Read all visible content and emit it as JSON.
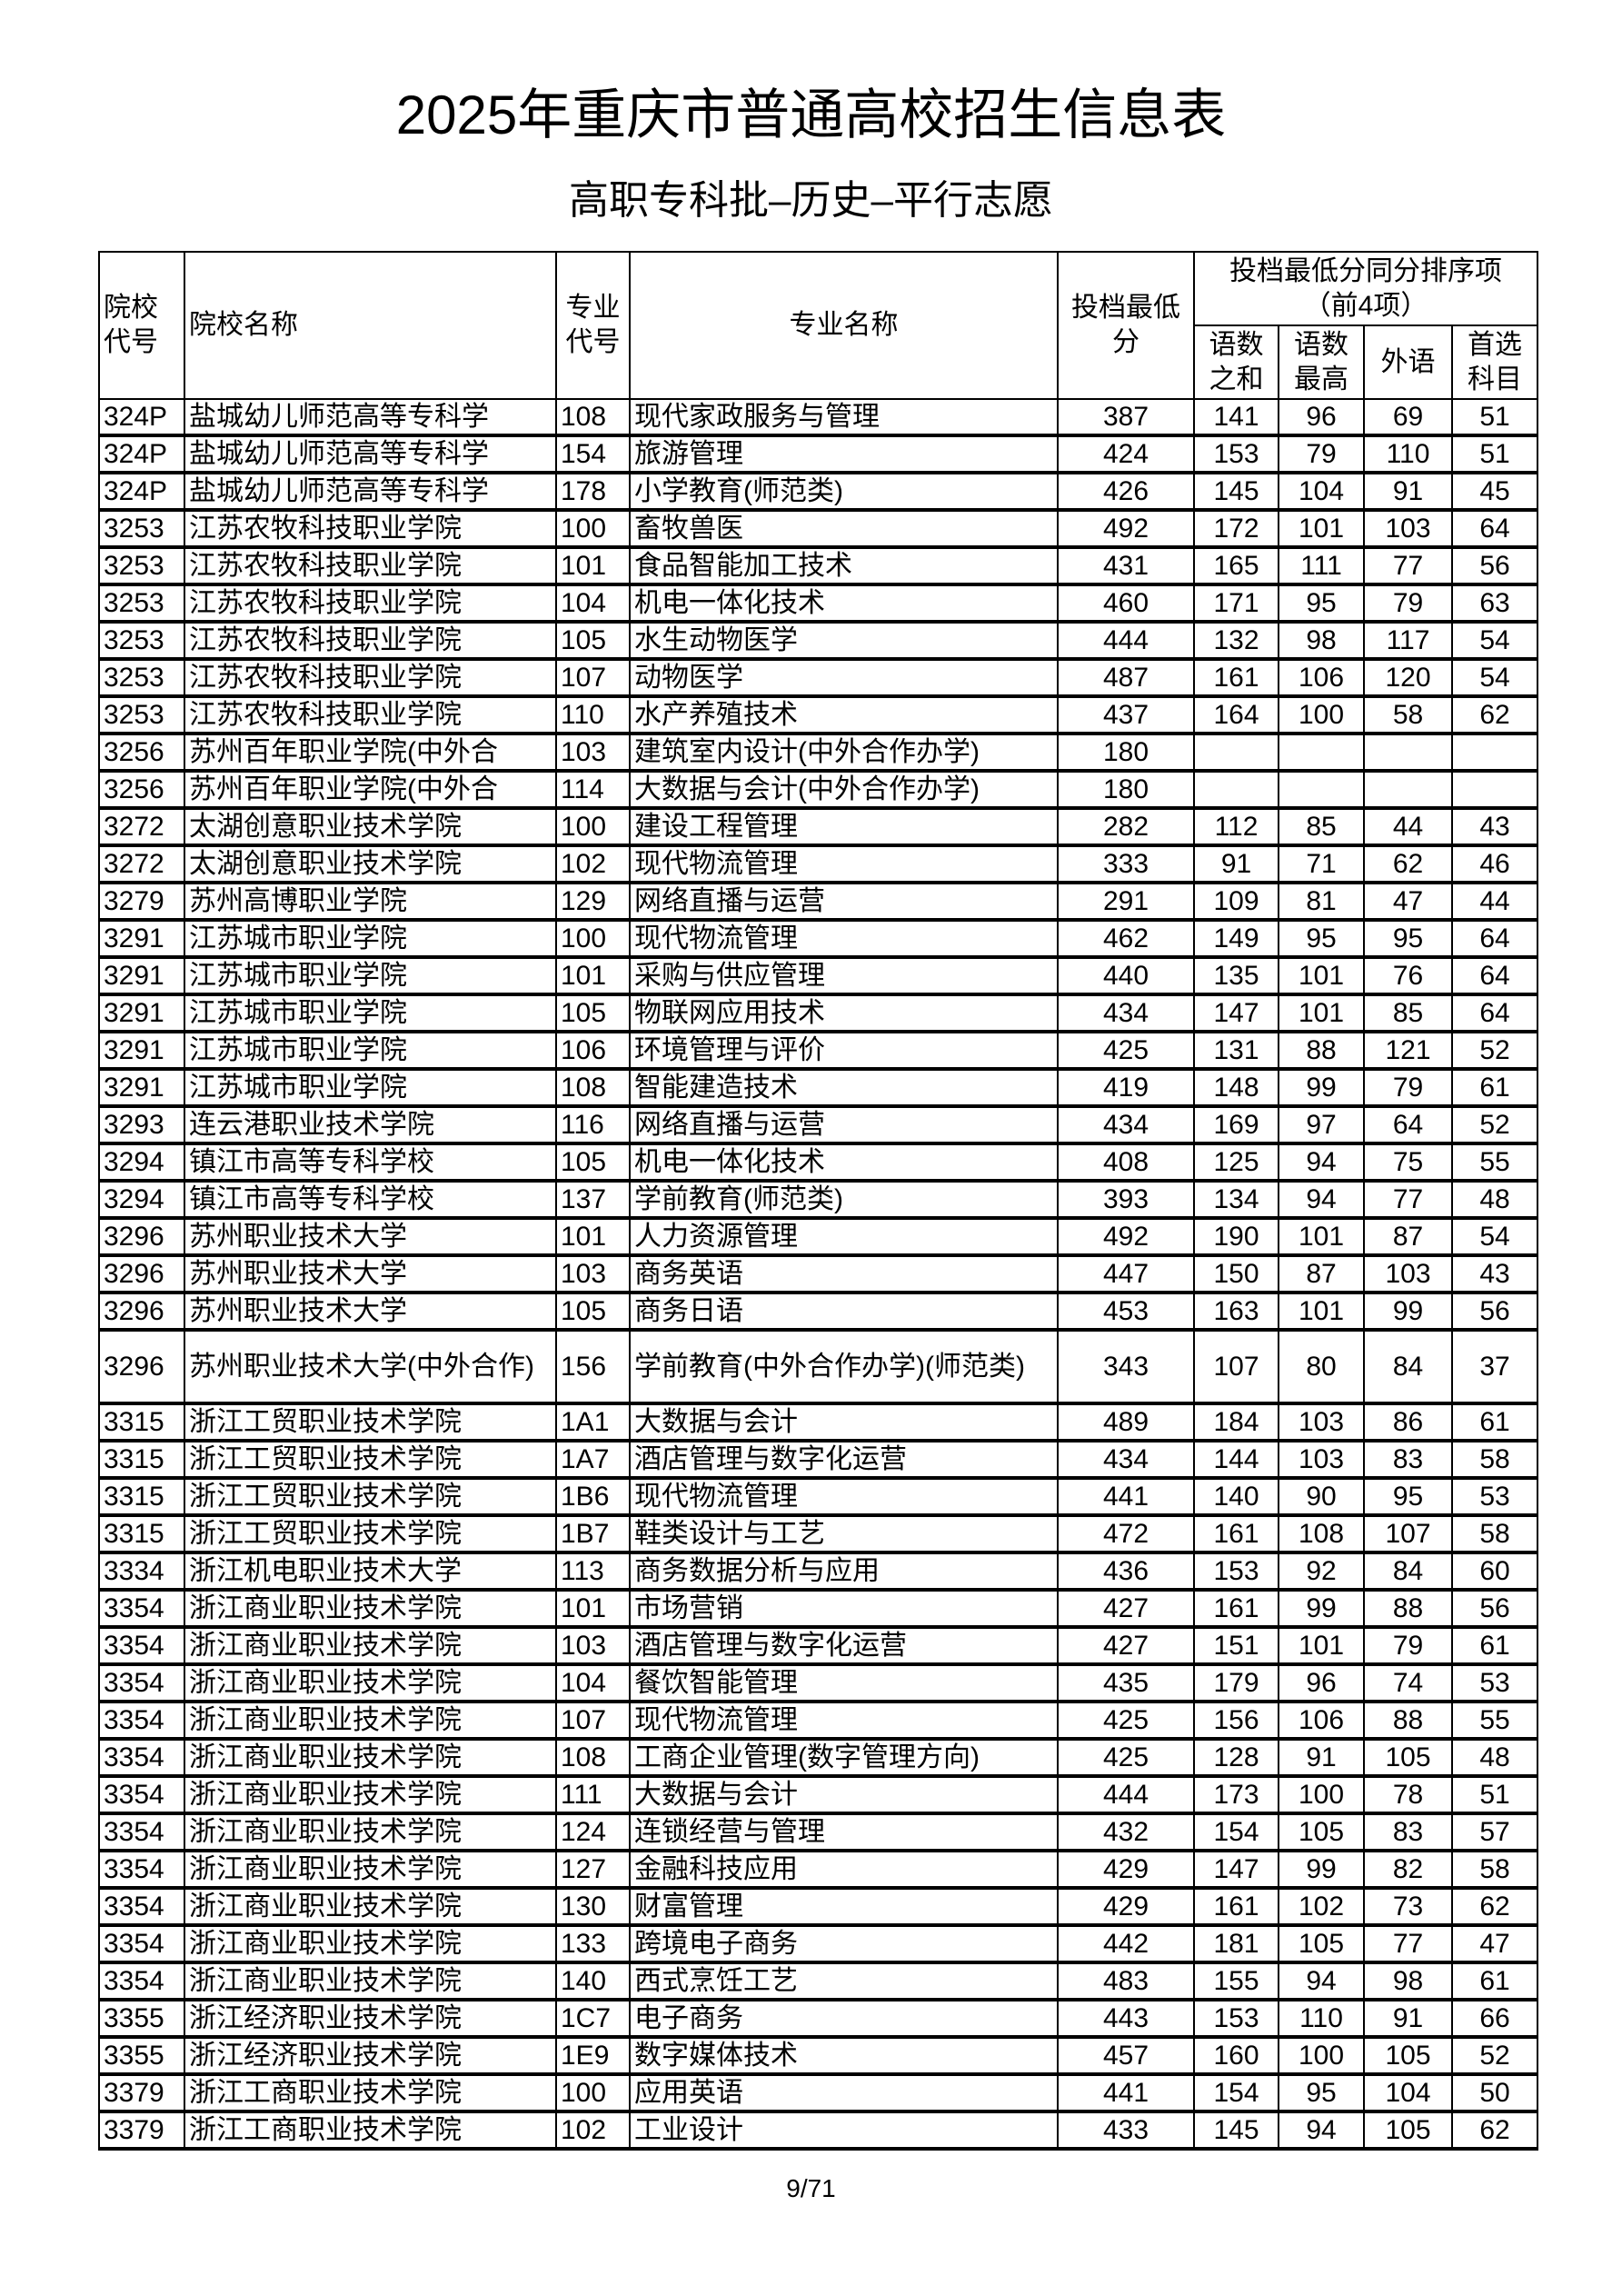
{
  "title": "2025年重庆市普通高校招生信息表",
  "subtitle": "高职专科批–历史–平行志愿",
  "table": {
    "headers": {
      "school_code": "院校代号",
      "school_name": "院校名称",
      "major_code": "专业代号",
      "major_name": "专业名称",
      "min_score": "投档最低分",
      "tiebreak_group": "投档最低分同分排序项",
      "tiebreak_group_note": "（前4项）",
      "yushu_sum": "语数之和",
      "yushu_max": "语数最高",
      "foreign": "外语",
      "first_subject": "首选科目"
    },
    "rows": [
      [
        "324P",
        "盐城幼儿师范高等专科学",
        "108",
        "现代家政服务与管理",
        "387",
        "141",
        "96",
        "69",
        "51"
      ],
      [
        "324P",
        "盐城幼儿师范高等专科学",
        "154",
        "旅游管理",
        "424",
        "153",
        "79",
        "110",
        "51"
      ],
      [
        "324P",
        "盐城幼儿师范高等专科学",
        "178",
        "小学教育(师范类)",
        "426",
        "145",
        "104",
        "91",
        "45"
      ],
      [
        "3253",
        "江苏农牧科技职业学院",
        "100",
        "畜牧兽医",
        "492",
        "172",
        "101",
        "103",
        "64"
      ],
      [
        "3253",
        "江苏农牧科技职业学院",
        "101",
        "食品智能加工技术",
        "431",
        "165",
        "111",
        "77",
        "56"
      ],
      [
        "3253",
        "江苏农牧科技职业学院",
        "104",
        "机电一体化技术",
        "460",
        "171",
        "95",
        "79",
        "63"
      ],
      [
        "3253",
        "江苏农牧科技职业学院",
        "105",
        "水生动物医学",
        "444",
        "132",
        "98",
        "117",
        "54"
      ],
      [
        "3253",
        "江苏农牧科技职业学院",
        "107",
        "动物医学",
        "487",
        "161",
        "106",
        "120",
        "54"
      ],
      [
        "3253",
        "江苏农牧科技职业学院",
        "110",
        "水产养殖技术",
        "437",
        "164",
        "100",
        "58",
        "62"
      ],
      [
        "3256",
        "苏州百年职业学院(中外合",
        "103",
        "建筑室内设计(中外合作办学)",
        "180",
        "",
        "",
        "",
        ""
      ],
      [
        "3256",
        "苏州百年职业学院(中外合",
        "114",
        "大数据与会计(中外合作办学)",
        "180",
        "",
        "",
        "",
        ""
      ],
      [
        "3272",
        "太湖创意职业技术学院",
        "100",
        "建设工程管理",
        "282",
        "112",
        "85",
        "44",
        "43"
      ],
      [
        "3272",
        "太湖创意职业技术学院",
        "102",
        "现代物流管理",
        "333",
        "91",
        "71",
        "62",
        "46"
      ],
      [
        "3279",
        "苏州高博职业学院",
        "129",
        "网络直播与运营",
        "291",
        "109",
        "81",
        "47",
        "44"
      ],
      [
        "3291",
        "江苏城市职业学院",
        "100",
        "现代物流管理",
        "462",
        "149",
        "95",
        "95",
        "64"
      ],
      [
        "3291",
        "江苏城市职业学院",
        "101",
        "采购与供应管理",
        "440",
        "135",
        "101",
        "76",
        "64"
      ],
      [
        "3291",
        "江苏城市职业学院",
        "105",
        "物联网应用技术",
        "434",
        "147",
        "101",
        "85",
        "64"
      ],
      [
        "3291",
        "江苏城市职业学院",
        "106",
        "环境管理与评价",
        "425",
        "131",
        "88",
        "121",
        "52"
      ],
      [
        "3291",
        "江苏城市职业学院",
        "108",
        "智能建造技术",
        "419",
        "148",
        "99",
        "79",
        "61"
      ],
      [
        "3293",
        "连云港职业技术学院",
        "116",
        "网络直播与运营",
        "434",
        "169",
        "97",
        "64",
        "52"
      ],
      [
        "3294",
        "镇江市高等专科学校",
        "105",
        "机电一体化技术",
        "408",
        "125",
        "94",
        "75",
        "55"
      ],
      [
        "3294",
        "镇江市高等专科学校",
        "137",
        "学前教育(师范类)",
        "393",
        "134",
        "94",
        "77",
        "48"
      ],
      [
        "3296",
        "苏州职业技术大学",
        "101",
        "人力资源管理",
        "492",
        "190",
        "101",
        "87",
        "54"
      ],
      [
        "3296",
        "苏州职业技术大学",
        "103",
        "商务英语",
        "447",
        "150",
        "87",
        "103",
        "43"
      ],
      [
        "3296",
        "苏州职业技术大学",
        "105",
        "商务日语",
        "453",
        "163",
        "101",
        "99",
        "56"
      ],
      [
        "3296",
        "苏州职业技术大学(中外合作)",
        "156",
        "学前教育(中外合作办学)(师范类)",
        "343",
        "107",
        "80",
        "84",
        "37"
      ],
      [
        "3315",
        "浙江工贸职业技术学院",
        "1A1",
        "大数据与会计",
        "489",
        "184",
        "103",
        "86",
        "61"
      ],
      [
        "3315",
        "浙江工贸职业技术学院",
        "1A7",
        "酒店管理与数字化运营",
        "434",
        "144",
        "103",
        "83",
        "58"
      ],
      [
        "3315",
        "浙江工贸职业技术学院",
        "1B6",
        "现代物流管理",
        "441",
        "140",
        "90",
        "95",
        "53"
      ],
      [
        "3315",
        "浙江工贸职业技术学院",
        "1B7",
        "鞋类设计与工艺",
        "472",
        "161",
        "108",
        "107",
        "58"
      ],
      [
        "3334",
        "浙江机电职业技术大学",
        "113",
        "商务数据分析与应用",
        "436",
        "153",
        "92",
        "84",
        "60"
      ],
      [
        "3354",
        "浙江商业职业技术学院",
        "101",
        "市场营销",
        "427",
        "161",
        "99",
        "88",
        "56"
      ],
      [
        "3354",
        "浙江商业职业技术学院",
        "103",
        "酒店管理与数字化运营",
        "427",
        "151",
        "101",
        "79",
        "61"
      ],
      [
        "3354",
        "浙江商业职业技术学院",
        "104",
        "餐饮智能管理",
        "435",
        "179",
        "96",
        "74",
        "53"
      ],
      [
        "3354",
        "浙江商业职业技术学院",
        "107",
        "现代物流管理",
        "425",
        "156",
        "106",
        "88",
        "55"
      ],
      [
        "3354",
        "浙江商业职业技术学院",
        "108",
        "工商企业管理(数字管理方向)",
        "425",
        "128",
        "91",
        "105",
        "48"
      ],
      [
        "3354",
        "浙江商业职业技术学院",
        "111",
        "大数据与会计",
        "444",
        "173",
        "100",
        "78",
        "51"
      ],
      [
        "3354",
        "浙江商业职业技术学院",
        "124",
        "连锁经营与管理",
        "432",
        "154",
        "105",
        "83",
        "57"
      ],
      [
        "3354",
        "浙江商业职业技术学院",
        "127",
        "金融科技应用",
        "429",
        "147",
        "99",
        "82",
        "58"
      ],
      [
        "3354",
        "浙江商业职业技术学院",
        "130",
        "财富管理",
        "429",
        "161",
        "102",
        "73",
        "62"
      ],
      [
        "3354",
        "浙江商业职业技术学院",
        "133",
        "跨境电子商务",
        "442",
        "181",
        "105",
        "77",
        "47"
      ],
      [
        "3354",
        "浙江商业职业技术学院",
        "140",
        "西式烹饪工艺",
        "483",
        "155",
        "94",
        "98",
        "61"
      ],
      [
        "3355",
        "浙江经济职业技术学院",
        "1C7",
        "电子商务",
        "443",
        "153",
        "110",
        "91",
        "66"
      ],
      [
        "3355",
        "浙江经济职业技术学院",
        "1E9",
        "数字媒体技术",
        "457",
        "160",
        "100",
        "105",
        "52"
      ],
      [
        "3379",
        "浙江工商职业技术学院",
        "100",
        "应用英语",
        "441",
        "154",
        "95",
        "104",
        "50"
      ],
      [
        "3379",
        "浙江工商职业技术学院",
        "102",
        "工业设计",
        "433",
        "145",
        "94",
        "105",
        "62"
      ]
    ]
  },
  "footer": {
    "page": "9/71"
  }
}
